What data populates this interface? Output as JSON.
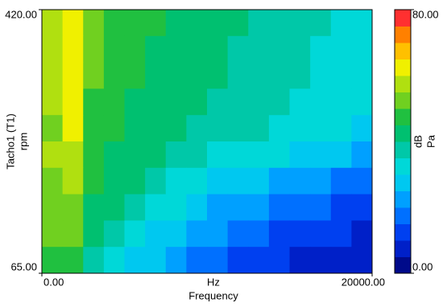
{
  "chart_data": {
    "type": "heatmap",
    "xlabel": "Frequency",
    "xunit": "Hz",
    "ylabel": "Tacho1 (T1)",
    "yunit": "rpm",
    "colorbar_label": "dB",
    "colorbar_unit": "Pa",
    "xlim": [
      0,
      20000
    ],
    "xticks": [
      {
        "value": 0,
        "label": "0.00"
      },
      {
        "value": 20000,
        "label": "20000.00"
      }
    ],
    "ylim": [
      65,
      420
    ],
    "yticks": [
      {
        "value": 65,
        "label": "65.00"
      },
      {
        "value": 420,
        "label": "420.00"
      }
    ],
    "clim": [
      0,
      80
    ],
    "cticks": [
      {
        "value": 0,
        "label": "0.00"
      },
      {
        "value": 80,
        "label": "80.00"
      }
    ],
    "colors": [
      "#000a8a",
      "#0020c8",
      "#0040f0",
      "#0070ff",
      "#00a0ff",
      "#00c8f0",
      "#00d8d8",
      "#00c8a8",
      "#00c070",
      "#20c040",
      "#70d020",
      "#b0e010",
      "#f0f000",
      "#ffc000",
      "#ff8000",
      "#ff3030"
    ],
    "z": [
      [
        55,
        60,
        50,
        48,
        46,
        45,
        44,
        42,
        40,
        40,
        38,
        38,
        36,
        35,
        34,
        33
      ],
      [
        55,
        62,
        50,
        48,
        45,
        44,
        43,
        42,
        40,
        39,
        38,
        37,
        35,
        34,
        33,
        32
      ],
      [
        56,
        62,
        50,
        47,
        45,
        44,
        42,
        41,
        40,
        38,
        37,
        36,
        35,
        34,
        32,
        31
      ],
      [
        55,
        60,
        49,
        46,
        44,
        43,
        42,
        40,
        39,
        38,
        37,
        35,
        34,
        33,
        32,
        30
      ],
      [
        54,
        60,
        48,
        45,
        43,
        42,
        40,
        39,
        37,
        36,
        35,
        34,
        33,
        32,
        30,
        29
      ],
      [
        55,
        58,
        47,
        44,
        42,
        40,
        38,
        36,
        34,
        33,
        31,
        30,
        28,
        27,
        25,
        24
      ],
      [
        54,
        56,
        46,
        42,
        40,
        37,
        34,
        31,
        29,
        27,
        25,
        23,
        22,
        20,
        19,
        18
      ],
      [
        52,
        54,
        44,
        40,
        36,
        33,
        30,
        27,
        24,
        22,
        20,
        18,
        16,
        15,
        14,
        13
      ],
      [
        50,
        52,
        42,
        37,
        33,
        29,
        26,
        23,
        20,
        18,
        15,
        13,
        12,
        11,
        10,
        9
      ],
      [
        45,
        46,
        38,
        33,
        29,
        25,
        22,
        19,
        16,
        14,
        12,
        10,
        9,
        8,
        7,
        6
      ]
    ]
  }
}
